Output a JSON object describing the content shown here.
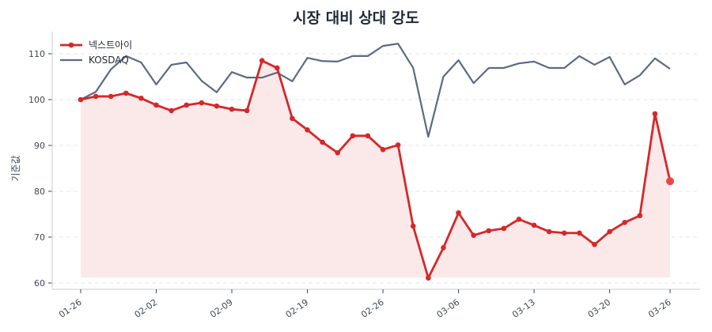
{
  "title": "시장 대비 상대 강도",
  "chart_data": {
    "type": "line",
    "title": "시장 대비 상대 강도",
    "xlabel": "",
    "ylabel": "기준값",
    "ylim": [
      59,
      114.5
    ],
    "yticks": [
      60,
      70,
      80,
      90,
      100,
      110
    ],
    "xtick_labels": [
      "01-26",
      "02-02",
      "02-09",
      "02-19",
      "02-26",
      "03-06",
      "03-13",
      "03-20",
      "03-26"
    ],
    "xtick_indices": [
      0,
      5,
      10,
      15,
      20,
      25,
      30,
      35,
      39
    ],
    "grid": "horizontal dashed",
    "legend_position": "upper left",
    "n_points": 40,
    "series": [
      {
        "name": "넥스트아이",
        "color": "#d62728",
        "marker": "circle",
        "fill": true,
        "fill_color": "#fbe9e9",
        "last_marker_color": "#ef4444",
        "values": [
          100.0,
          100.7,
          100.7,
          101.4,
          100.3,
          98.8,
          97.6,
          98.8,
          99.3,
          98.6,
          97.9,
          97.6,
          108.5,
          106.9,
          95.9,
          93.4,
          90.7,
          88.4,
          92.1,
          92.1,
          89.1,
          90.1,
          72.4,
          61.1,
          67.7,
          75.3,
          70.4,
          71.4,
          71.9,
          73.9,
          72.6,
          71.2,
          70.9,
          70.9,
          68.4,
          71.2,
          73.2,
          74.7,
          96.9,
          82.2
        ]
      },
      {
        "name": "KOSDAQ",
        "color": "#5a6b84",
        "marker": "none",
        "fill": false,
        "values": [
          100.0,
          101.7,
          106.6,
          109.5,
          108.1,
          103.3,
          107.6,
          108.1,
          104.1,
          101.6,
          106.0,
          104.8,
          104.8,
          105.9,
          104.0,
          109.1,
          108.4,
          108.3,
          109.5,
          109.5,
          111.7,
          112.2,
          106.9,
          91.9,
          105.0,
          108.6,
          103.6,
          106.9,
          106.9,
          107.9,
          108.3,
          106.9,
          106.9,
          109.5,
          107.6,
          109.3,
          103.3,
          105.3,
          109.0,
          106.7
        ]
      }
    ]
  },
  "legend": {
    "items": [
      {
        "label": "넥스트아이",
        "color": "#d62728"
      },
      {
        "label": "KOSDAQ",
        "color": "#5a6b84"
      }
    ]
  }
}
